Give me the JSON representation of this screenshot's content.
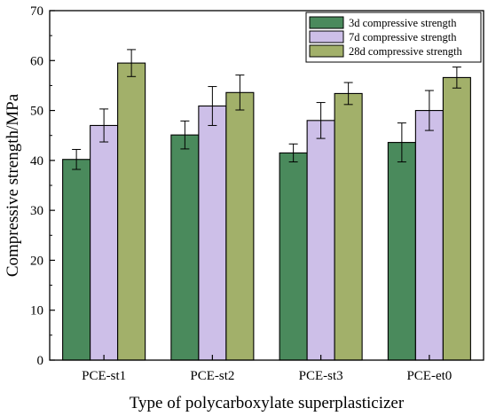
{
  "chart_data": {
    "type": "bar",
    "title": "",
    "xlabel": "Type of polycarboxylate superplasticizer",
    "ylabel": "Compressive strength/MPa",
    "ylim": [
      0,
      70
    ],
    "yticks": [
      0,
      10,
      20,
      30,
      40,
      50,
      60,
      70
    ],
    "categories": [
      "PCE-st1",
      "PCE-st2",
      "PCE-st3",
      "PCE-et0"
    ],
    "series": [
      {
        "name": "3d compressive strength",
        "color": "#4a8a5c",
        "values": [
          40.2,
          45.1,
          41.5,
          43.6
        ],
        "errors": [
          2.0,
          2.8,
          1.8,
          3.9
        ]
      },
      {
        "name": "7d compressive strength",
        "color": "#cdbfe8",
        "values": [
          47.0,
          50.9,
          48.0,
          50.0
        ],
        "errors": [
          3.3,
          3.9,
          3.6,
          4.0
        ]
      },
      {
        "name": "28d compressive strength",
        "color": "#a2b06a",
        "values": [
          59.5,
          53.6,
          53.4,
          56.6
        ],
        "errors": [
          2.7,
          3.5,
          2.2,
          2.1
        ]
      }
    ],
    "legend_position": "top-right",
    "grid": false
  }
}
